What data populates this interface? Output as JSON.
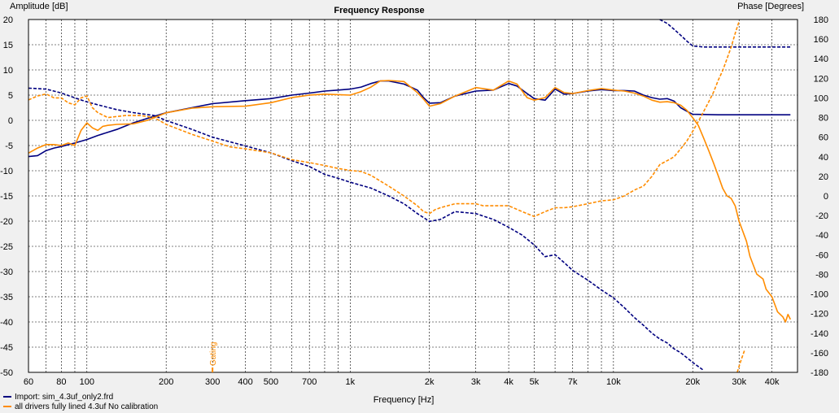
{
  "chart_data": {
    "type": "line",
    "title": "Frequency Response",
    "xlabel": "Frequency [Hz]",
    "ylabel_left": "Amplitude [dB]",
    "ylabel_right": "Phase [Degrees]",
    "x_scale": "log",
    "xlim": [
      60,
      50000
    ],
    "ylim_left": [
      -50,
      20
    ],
    "ylim_right": [
      -180,
      180
    ],
    "grid": true,
    "legend_position": "bottom-left",
    "x_ticks": [
      {
        "value": 60,
        "label": "60"
      },
      {
        "value": 80,
        "label": "80"
      },
      {
        "value": 100,
        "label": "100"
      },
      {
        "value": 200,
        "label": "200"
      },
      {
        "value": 300,
        "label": "300"
      },
      {
        "value": 400,
        "label": "400"
      },
      {
        "value": 500,
        "label": "500"
      },
      {
        "value": 700,
        "label": "700"
      },
      {
        "value": 1000,
        "label": "1k"
      },
      {
        "value": 2000,
        "label": "2k"
      },
      {
        "value": 3000,
        "label": "3k"
      },
      {
        "value": 4000,
        "label": "4k"
      },
      {
        "value": 5000,
        "label": "5k"
      },
      {
        "value": 7000,
        "label": "7k"
      },
      {
        "value": 10000,
        "label": "10k"
      },
      {
        "value": 20000,
        "label": "20k"
      },
      {
        "value": 30000,
        "label": "30k"
      },
      {
        "value": 40000,
        "label": "40k"
      }
    ],
    "y_ticks_left": [
      "20",
      "15",
      "10",
      "5",
      "0",
      "-5",
      "-10",
      "-15",
      "-20",
      "-25",
      "-30",
      "-35",
      "-40",
      "-45",
      "-50"
    ],
    "y_ticks_right": [
      "180",
      "160",
      "140",
      "120",
      "100",
      "80",
      "60",
      "40",
      "20",
      "0",
      "-20",
      "-40",
      "-60",
      "-80",
      "-100",
      "-120",
      "-140",
      "-160",
      "-180"
    ],
    "gating_label": "Gating",
    "gating_freq": 300,
    "colors": {
      "import": "#000080",
      "measured": "#ff8c00"
    },
    "series": [
      {
        "name": "Import: sim_4.3uf_only2.frd",
        "color": "#000080",
        "kind": "amplitude",
        "style": "solid",
        "points": [
          [
            60,
            -7.2
          ],
          [
            65,
            -7
          ],
          [
            70,
            -6
          ],
          [
            75,
            -5.5
          ],
          [
            80,
            -5.2
          ],
          [
            90,
            -4.5
          ],
          [
            100,
            -3.8
          ],
          [
            110,
            -3
          ],
          [
            130,
            -1.8
          ],
          [
            150,
            -0.5
          ],
          [
            180,
            0.8
          ],
          [
            200,
            1.5
          ],
          [
            250,
            2.5
          ],
          [
            300,
            3.3
          ],
          [
            400,
            3.9
          ],
          [
            500,
            4.3
          ],
          [
            600,
            5
          ],
          [
            700,
            5.4
          ],
          [
            800,
            5.8
          ],
          [
            900,
            6
          ],
          [
            1000,
            6.2
          ],
          [
            1100,
            6.6
          ],
          [
            1200,
            7.3
          ],
          [
            1300,
            7.8
          ],
          [
            1400,
            7.8
          ],
          [
            1600,
            7.2
          ],
          [
            1800,
            6
          ],
          [
            1900,
            4.5
          ],
          [
            2000,
            3.4
          ],
          [
            2200,
            3.5
          ],
          [
            2500,
            4.8
          ],
          [
            3000,
            5.8
          ],
          [
            3500,
            6
          ],
          [
            4000,
            7.3
          ],
          [
            4300,
            6.8
          ],
          [
            4700,
            5.3
          ],
          [
            5000,
            4.3
          ],
          [
            5500,
            4
          ],
          [
            6000,
            6.2
          ],
          [
            6500,
            5.2
          ],
          [
            7000,
            5.3
          ],
          [
            8000,
            5.8
          ],
          [
            9000,
            6.1
          ],
          [
            10000,
            5.9
          ],
          [
            11000,
            5.9
          ],
          [
            12000,
            5.8
          ],
          [
            13000,
            5
          ],
          [
            14000,
            4.5
          ],
          [
            15000,
            4.2
          ],
          [
            16000,
            4.3
          ],
          [
            17000,
            3.8
          ],
          [
            18000,
            2.5
          ],
          [
            19000,
            1.8
          ],
          [
            20000,
            1.2
          ],
          [
            25000,
            1.1
          ],
          [
            30000,
            1.1
          ],
          [
            40000,
            1.1
          ],
          [
            47000,
            1.1
          ]
        ]
      },
      {
        "name": "Import: sim_4.3uf_only2.frd",
        "color": "#000080",
        "kind": "phase",
        "style": "dashed",
        "points": [
          [
            60,
            110
          ],
          [
            70,
            109
          ],
          [
            80,
            105
          ],
          [
            90,
            100
          ],
          [
            100,
            96
          ],
          [
            110,
            93
          ],
          [
            130,
            88
          ],
          [
            150,
            85
          ],
          [
            180,
            82
          ],
          [
            200,
            77
          ],
          [
            250,
            68
          ],
          [
            300,
            60
          ],
          [
            400,
            51
          ],
          [
            500,
            44
          ],
          [
            600,
            36
          ],
          [
            700,
            30
          ],
          [
            800,
            22
          ],
          [
            900,
            18
          ],
          [
            1000,
            14
          ],
          [
            1200,
            8
          ],
          [
            1400,
            0
          ],
          [
            1600,
            -8
          ],
          [
            1800,
            -18
          ],
          [
            2000,
            -26
          ],
          [
            2200,
            -24
          ],
          [
            2500,
            -16
          ],
          [
            3000,
            -18
          ],
          [
            3500,
            -24
          ],
          [
            4000,
            -32
          ],
          [
            4500,
            -40
          ],
          [
            5000,
            -50
          ],
          [
            5500,
            -62
          ],
          [
            6000,
            -60
          ],
          [
            6500,
            -68
          ],
          [
            7000,
            -76
          ],
          [
            8000,
            -86
          ],
          [
            9000,
            -96
          ],
          [
            10000,
            -104
          ],
          [
            11000,
            -114
          ],
          [
            12000,
            -124
          ],
          [
            13000,
            -132
          ],
          [
            14000,
            -140
          ],
          [
            15000,
            -146
          ],
          [
            16000,
            -150
          ],
          [
            17000,
            -156
          ],
          [
            18000,
            -160
          ],
          [
            19000,
            -165
          ],
          [
            20000,
            -170
          ],
          [
            21000,
            -174
          ],
          [
            22000,
            -178
          ]
        ]
      },
      {
        "name": "Import: sim_4.3uf_only2.frd",
        "color": "#000080",
        "kind": "phase",
        "style": "dashed",
        "points": [
          [
            15000,
            180
          ],
          [
            16000,
            176
          ],
          [
            17000,
            170
          ],
          [
            18000,
            164
          ],
          [
            19000,
            158
          ],
          [
            20000,
            153
          ],
          [
            22000,
            152
          ],
          [
            30000,
            152
          ],
          [
            40000,
            152
          ],
          [
            47000,
            152
          ]
        ]
      },
      {
        "name": "all drivers fully lined 4.3uf No calibration",
        "color": "#ff8c00",
        "kind": "amplitude",
        "style": "solid",
        "points": [
          [
            60,
            -6.5
          ],
          [
            65,
            -5.5
          ],
          [
            70,
            -4.8
          ],
          [
            75,
            -4.8
          ],
          [
            80,
            -5
          ],
          [
            85,
            -4.5
          ],
          [
            90,
            -5
          ],
          [
            95,
            -2
          ],
          [
            100,
            -0.5
          ],
          [
            105,
            -1.5
          ],
          [
            110,
            -2
          ],
          [
            115,
            -1.2
          ],
          [
            120,
            -1
          ],
          [
            130,
            -0.8
          ],
          [
            150,
            -0.7
          ],
          [
            170,
            0
          ],
          [
            200,
            1.5
          ],
          [
            250,
            2.4
          ],
          [
            300,
            2.7
          ],
          [
            400,
            2.8
          ],
          [
            500,
            3.5
          ],
          [
            600,
            4.5
          ],
          [
            700,
            5
          ],
          [
            800,
            5.2
          ],
          [
            900,
            5.1
          ],
          [
            1000,
            5
          ],
          [
            1100,
            5.7
          ],
          [
            1200,
            6.6
          ],
          [
            1300,
            7.8
          ],
          [
            1400,
            7.9
          ],
          [
            1600,
            7.7
          ],
          [
            1800,
            5.5
          ],
          [
            1900,
            4.2
          ],
          [
            2000,
            2.8
          ],
          [
            2200,
            3.3
          ],
          [
            2500,
            4.8
          ],
          [
            3000,
            6.5
          ],
          [
            3500,
            6
          ],
          [
            4000,
            7.8
          ],
          [
            4300,
            7.2
          ],
          [
            4700,
            4.5
          ],
          [
            5000,
            4
          ],
          [
            5500,
            4.5
          ],
          [
            6000,
            6.5
          ],
          [
            6500,
            5.5
          ],
          [
            7000,
            5.3
          ],
          [
            8000,
            5.9
          ],
          [
            9000,
            6.3
          ],
          [
            10000,
            6
          ],
          [
            11000,
            5.8
          ],
          [
            12000,
            5.4
          ],
          [
            13000,
            4.8
          ],
          [
            14000,
            4
          ],
          [
            15000,
            3.6
          ],
          [
            16000,
            3.7
          ],
          [
            17000,
            3.5
          ],
          [
            18000,
            3
          ],
          [
            19000,
            2
          ],
          [
            20000,
            0.5
          ],
          [
            21000,
            -1
          ],
          [
            22000,
            -3.5
          ],
          [
            23000,
            -6
          ],
          [
            24000,
            -8.5
          ],
          [
            25000,
            -11
          ],
          [
            26000,
            -13.5
          ],
          [
            27000,
            -15
          ],
          [
            28000,
            -15.5
          ],
          [
            29000,
            -17
          ],
          [
            30000,
            -20
          ],
          [
            32000,
            -24
          ],
          [
            33000,
            -27
          ],
          [
            35000,
            -30.5
          ],
          [
            37000,
            -31.5
          ],
          [
            38000,
            -33.5
          ],
          [
            40000,
            -35
          ],
          [
            42000,
            -38
          ],
          [
            44000,
            -39
          ],
          [
            45000,
            -40
          ],
          [
            46000,
            -38.5
          ],
          [
            47000,
            -39.5
          ]
        ]
      },
      {
        "name": "all drivers fully lined 4.3uf No calibration",
        "color": "#ff8c00",
        "kind": "phase",
        "style": "dashed",
        "points": [
          [
            60,
            98
          ],
          [
            65,
            102
          ],
          [
            70,
            104
          ],
          [
            75,
            100
          ],
          [
            80,
            100
          ],
          [
            85,
            95
          ],
          [
            90,
            93
          ],
          [
            95,
            100
          ],
          [
            100,
            102
          ],
          [
            105,
            90
          ],
          [
            110,
            85
          ],
          [
            120,
            80
          ],
          [
            140,
            82
          ],
          [
            160,
            82
          ],
          [
            180,
            80
          ],
          [
            200,
            73
          ],
          [
            250,
            63
          ],
          [
            300,
            56
          ],
          [
            350,
            50
          ],
          [
            400,
            48
          ],
          [
            500,
            44
          ],
          [
            600,
            37
          ],
          [
            700,
            34
          ],
          [
            800,
            31
          ],
          [
            900,
            28
          ],
          [
            1000,
            26
          ],
          [
            1100,
            25
          ],
          [
            1200,
            21
          ],
          [
            1400,
            10
          ],
          [
            1600,
            0
          ],
          [
            1800,
            -10
          ],
          [
            1900,
            -16
          ],
          [
            2000,
            -18
          ],
          [
            2100,
            -14
          ],
          [
            2200,
            -12
          ],
          [
            2500,
            -8
          ],
          [
            3000,
            -8
          ],
          [
            3200,
            -10
          ],
          [
            3500,
            -10
          ],
          [
            4000,
            -10
          ],
          [
            4500,
            -16
          ],
          [
            5000,
            -21
          ],
          [
            5500,
            -16
          ],
          [
            6000,
            -12
          ],
          [
            6500,
            -12
          ],
          [
            7000,
            -11
          ],
          [
            8000,
            -8
          ],
          [
            9000,
            -5
          ],
          [
            10000,
            -4
          ],
          [
            11000,
            0
          ],
          [
            12000,
            6
          ],
          [
            13000,
            10
          ],
          [
            14000,
            20
          ],
          [
            15000,
            32
          ],
          [
            16000,
            36
          ],
          [
            17000,
            40
          ],
          [
            18000,
            48
          ],
          [
            19000,
            56
          ],
          [
            20000,
            66
          ],
          [
            21000,
            76
          ],
          [
            22000,
            86
          ],
          [
            23000,
            96
          ],
          [
            24000,
            106
          ],
          [
            25000,
            118
          ],
          [
            26000,
            128
          ],
          [
            27000,
            140
          ],
          [
            28000,
            152
          ],
          [
            29000,
            166
          ],
          [
            30000,
            178
          ]
        ]
      },
      {
        "name": "all drivers fully lined 4.3uf No calibration",
        "color": "#ff8c00",
        "kind": "phase",
        "style": "dashed",
        "points": [
          [
            29500,
            -180
          ],
          [
            30500,
            -168
          ],
          [
            31500,
            -157
          ]
        ]
      }
    ],
    "legend": [
      {
        "label": "Import: sim_4.3uf_only2.frd",
        "color": "#000080"
      },
      {
        "label": "all drivers fully lined 4.3uf No calibration",
        "color": "#ff8c00"
      }
    ]
  }
}
